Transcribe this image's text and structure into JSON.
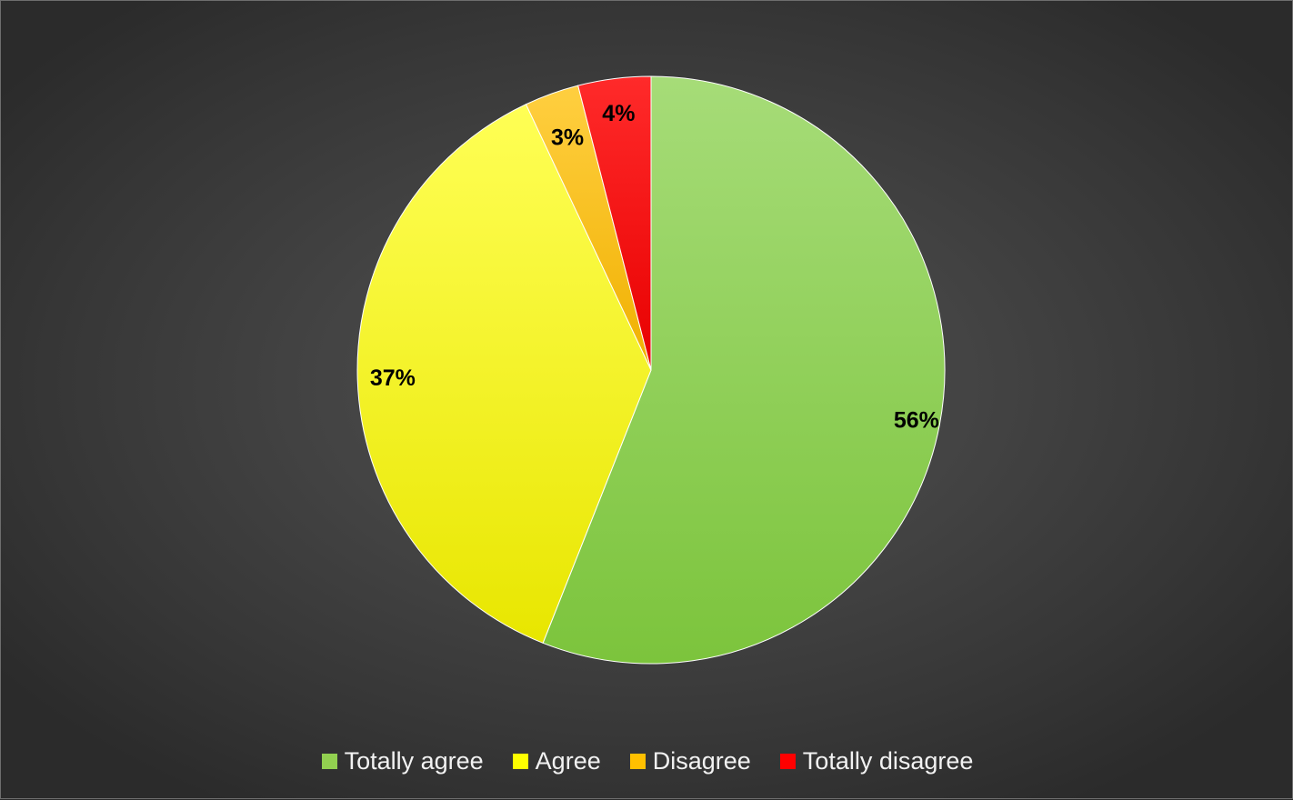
{
  "chart_data": {
    "type": "pie",
    "title": "",
    "categories": [
      "Totally agree",
      "Agree",
      "Disagree",
      "Totally disagree"
    ],
    "values": [
      56,
      37,
      3,
      4
    ],
    "labels": [
      "56%",
      "37%",
      "3%",
      "4%"
    ],
    "colors": [
      "#92d050",
      "#ffff00",
      "#ffc000",
      "#ff0000"
    ],
    "start_angle_deg": 0,
    "direction": "clockwise",
    "legend_position": "bottom",
    "show_percent_labels": true
  }
}
